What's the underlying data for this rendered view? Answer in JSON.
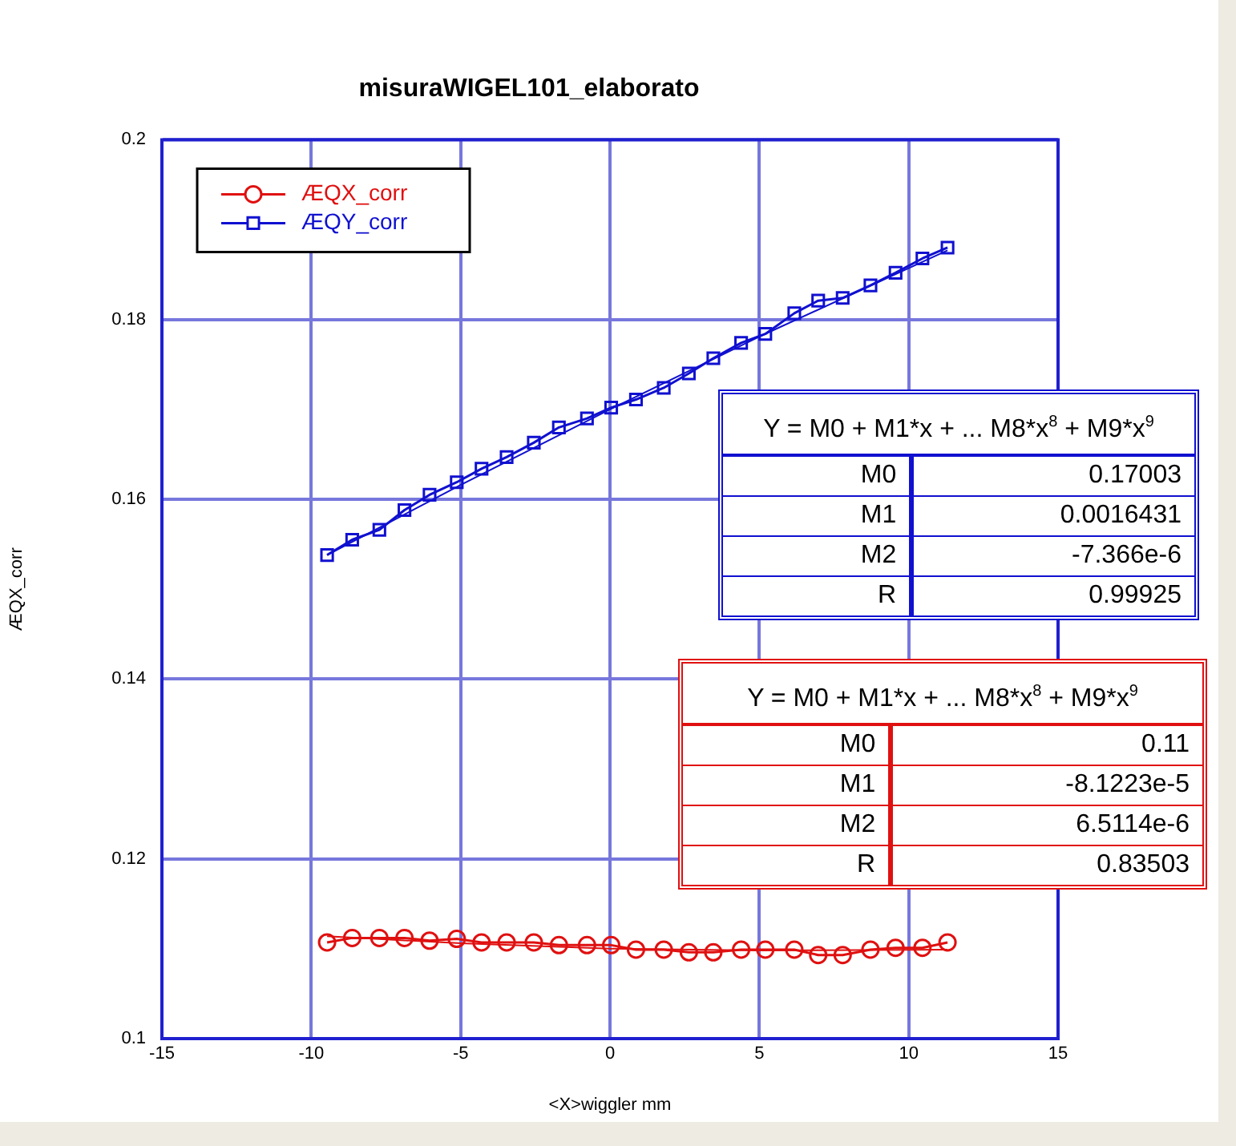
{
  "chart_data": {
    "type": "line",
    "title": "misuraWIGEL101_elaborato",
    "xlabel": "<X>wiggler mm",
    "ylabel": "ÆQX_corr",
    "xlim": [
      -15,
      15
    ],
    "xticks": [
      -15,
      -10,
      -5,
      0,
      5,
      10,
      15
    ],
    "ylim": [
      0.1,
      0.2
    ],
    "yticks": [
      0.1,
      0.12,
      0.14,
      0.16,
      0.18,
      0.2
    ],
    "grid": true,
    "legend": "top left",
    "series": [
      {
        "name": "ÆQX_corr",
        "color": "#e01010",
        "marker": "circle",
        "x": [
          -9.47,
          -8.63,
          -7.72,
          -6.88,
          -6.04,
          -5.13,
          -4.3,
          -3.46,
          -2.55,
          -1.71,
          -0.77,
          0.04,
          0.87,
          1.8,
          2.64,
          3.46,
          4.39,
          5.2,
          6.17,
          6.97,
          7.79,
          8.72,
          9.56,
          10.46,
          11.3
        ],
        "values": [
          0.1107,
          0.1112,
          0.1112,
          0.1112,
          0.1109,
          0.1111,
          0.1107,
          0.1107,
          0.1107,
          0.1104,
          0.1104,
          0.1104,
          0.1099,
          0.1099,
          0.1096,
          0.1096,
          0.1099,
          0.1099,
          0.1099,
          0.1093,
          0.1093,
          0.1099,
          0.1101,
          0.1101,
          0.1107
        ]
      },
      {
        "name": "ÆQY_corr",
        "color": "#1010d0",
        "marker": "square",
        "x": [
          -9.47,
          -8.63,
          -7.72,
          -6.88,
          -6.04,
          -5.13,
          -4.3,
          -3.46,
          -2.55,
          -1.71,
          -0.77,
          0.04,
          0.87,
          1.8,
          2.64,
          3.46,
          4.39,
          5.2,
          6.17,
          6.97,
          7.79,
          8.72,
          9.56,
          10.46,
          11.3
        ],
        "values": [
          0.1538,
          0.1555,
          0.1566,
          0.1588,
          0.1605,
          0.1619,
          0.1634,
          0.1647,
          0.1663,
          0.168,
          0.169,
          0.1702,
          0.1711,
          0.1724,
          0.174,
          0.1757,
          0.1774,
          0.1784,
          0.1807,
          0.1821,
          0.1824,
          0.1838,
          0.1852,
          0.1868,
          0.188
        ]
      },
      {
        "color": "#e01010",
        "marker": "none",
        "x": [
          -9.47,
          -5,
          0,
          5,
          11.3
        ],
        "values": [
          0.1114,
          0.1106,
          0.11,
          0.1098,
          0.1099
        ]
      },
      {
        "color": "#1010d0",
        "marker": "none",
        "x": [
          -9.47,
          -5,
          0,
          5,
          11.3
        ],
        "values": [
          0.1538,
          0.1616,
          0.17,
          0.1781,
          0.1877
        ]
      }
    ],
    "annotations": [
      "Y = M0 + M1*x + ... M8*x$^{8}$ + M9*x$^{9}$",
      "M0",
      "0.17003",
      "M1",
      "0.0016431",
      "M2",
      "-7.366e-6",
      "R",
      "0.99925",
      "Y = M0 + M1*x + ... M8*x$^{8}$ + M9*x$^{9}$",
      "M0",
      "0.11",
      "M1",
      "-8.1223e-5",
      "M2",
      "6.5114e-6",
      "R",
      "0.83503"
    ]
  }
}
